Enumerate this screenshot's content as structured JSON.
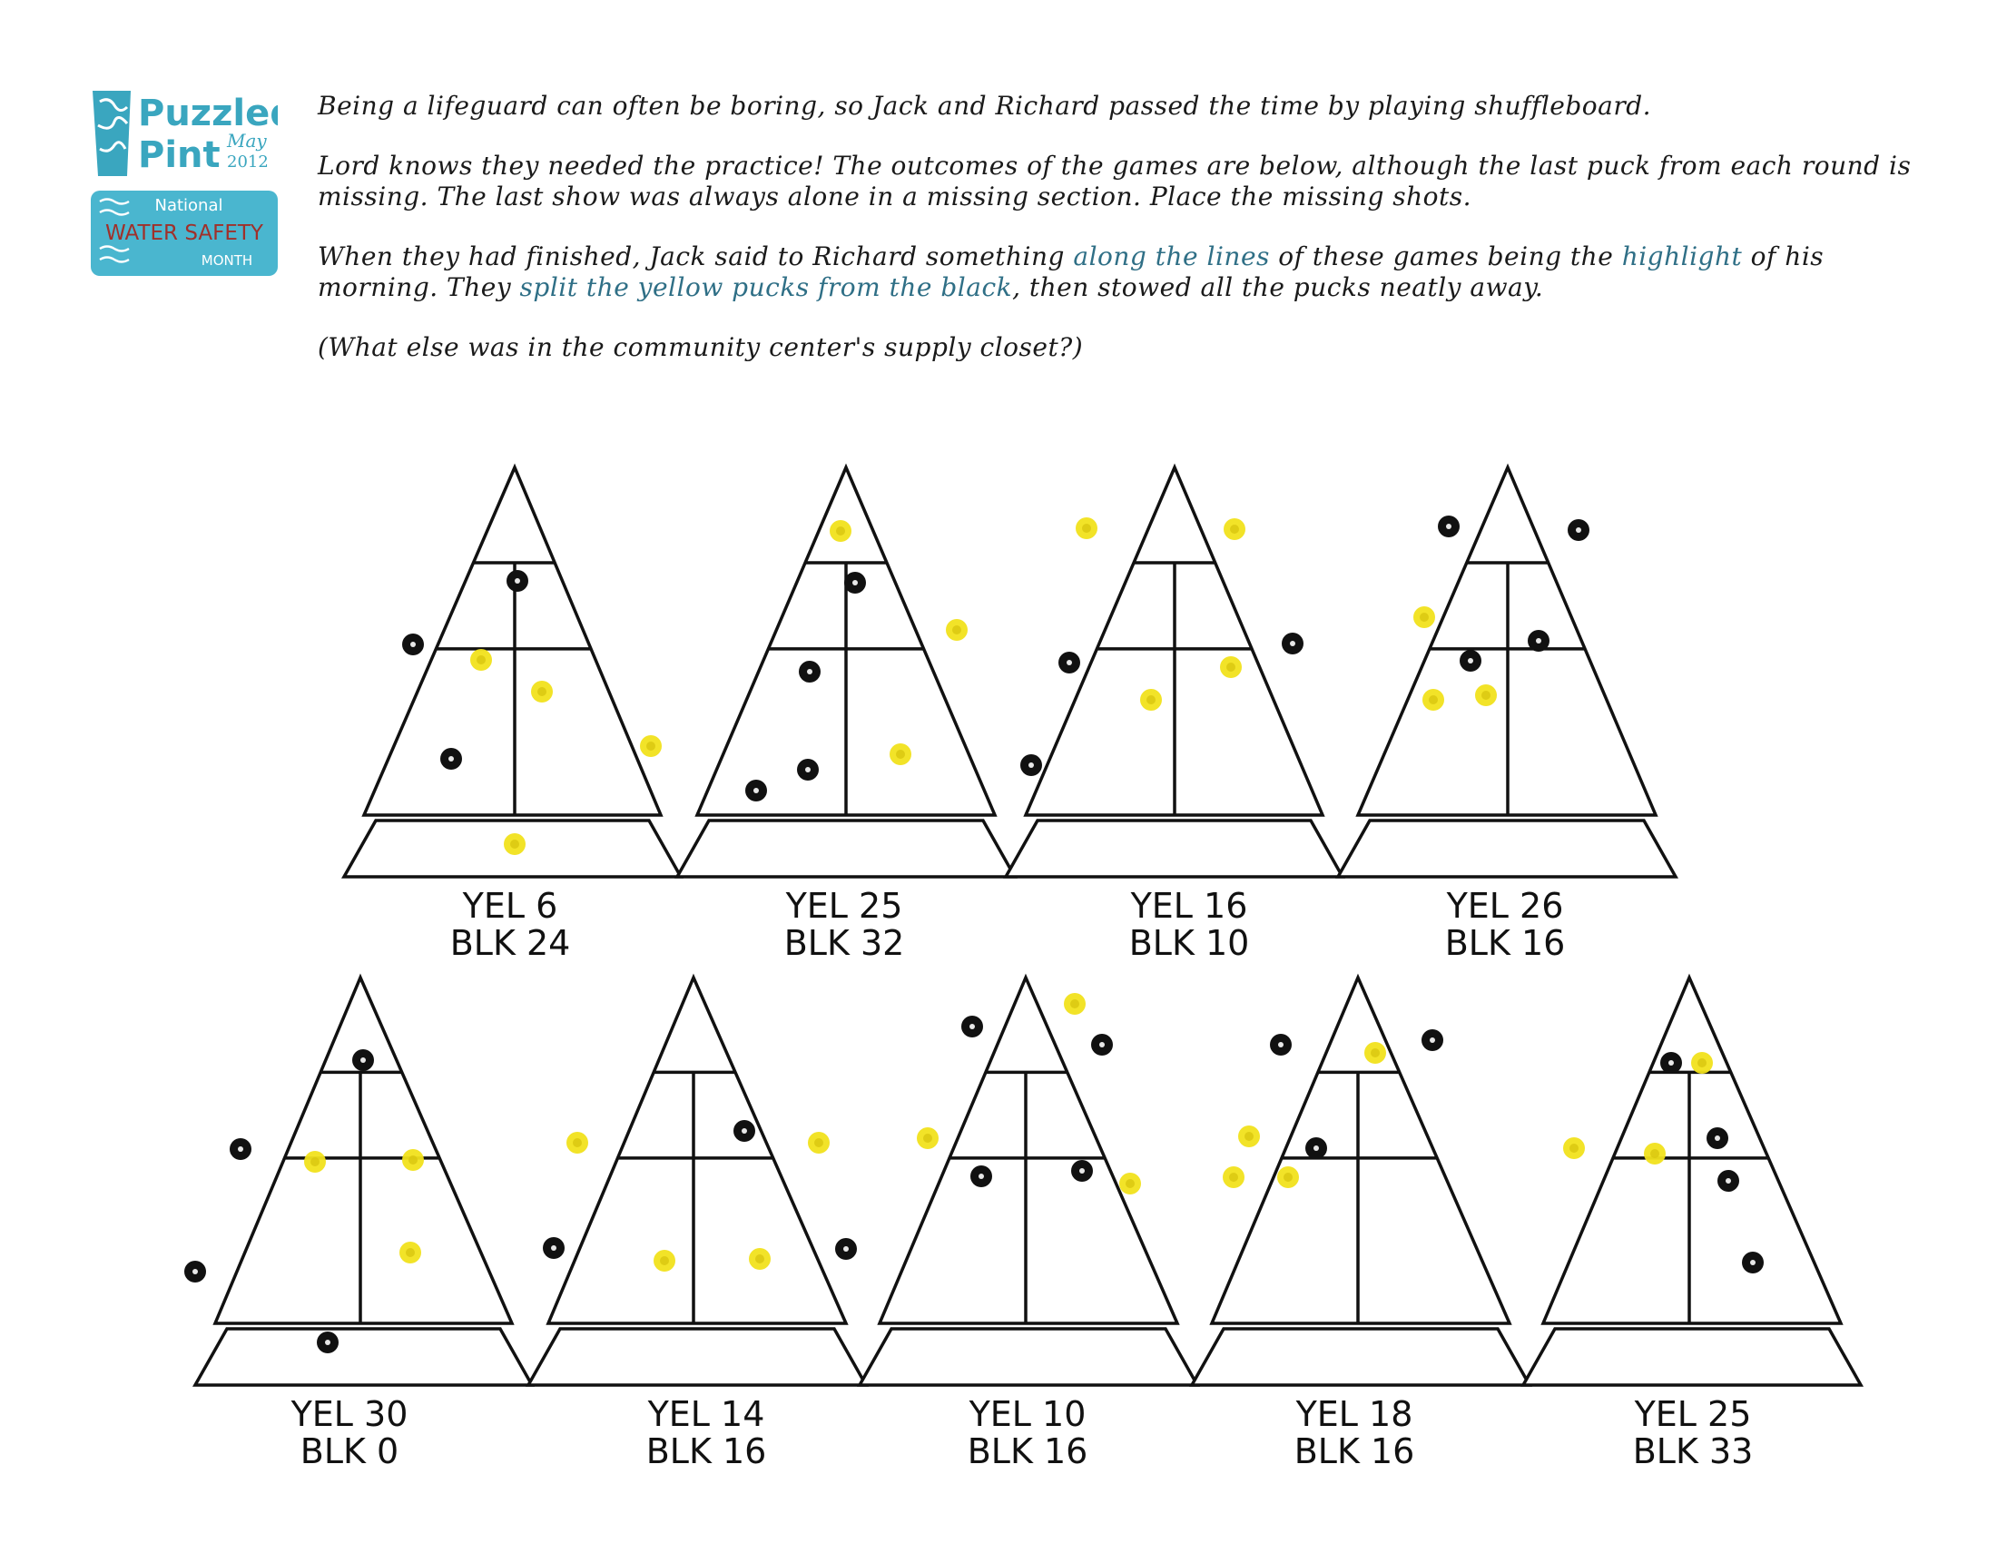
{
  "logo": {
    "line1": "Puzzled",
    "line2": "Pint",
    "month": "May",
    "year": "2012",
    "band1": "National",
    "band2": "WATER SAFETY",
    "band3": "MONTH",
    "icon": "puzzle-glass-icon",
    "colors": {
      "teal": "#3aa6bf",
      "band": "#4ab6cf",
      "red": "#a0302a"
    }
  },
  "intro": {
    "p1": "Being a lifeguard can often be boring, so Jack and Richard passed the time by playing shuffleboard.",
    "p2": "Lord knows they needed the practice!  The outcomes of the games are below, although the last puck from each round is missing.  The last show was always alone in a missing section.  Place the missing shots.",
    "p3_a": "When they had finished, Jack said to Richard something ",
    "p3_h1": "along the lines",
    "p3_b": " of these games being the ",
    "p3_h2": "highlight",
    "p3_c": " of his morning. They ",
    "p3_h3": "split the yellow pucks from the black",
    "p3_d": ", then stowed all the pucks neatly away.",
    "p4": "(What else was in the community center's supply closet?)"
  },
  "colors": {
    "yellow_puck": "#f1e21c",
    "black_puck": "#111111",
    "ink": "#111111"
  },
  "games": [
    {
      "yellow": "YEL 6",
      "black": "BLK 24"
    },
    {
      "yellow": "YEL 25",
      "black": "BLK 32"
    },
    {
      "yellow": "YEL 16",
      "black": "BLK 10"
    },
    {
      "yellow": "YEL 26",
      "black": "BLK 16"
    },
    {
      "yellow": "YEL 30",
      "black": "BLK 0"
    },
    {
      "yellow": "YEL 14",
      "black": "BLK 16"
    },
    {
      "yellow": "YEL 10",
      "black": "BLK 16"
    },
    {
      "yellow": "YEL 18",
      "black": "BLK 16"
    },
    {
      "yellow": "YEL 25",
      "black": "BLK 33"
    }
  ]
}
